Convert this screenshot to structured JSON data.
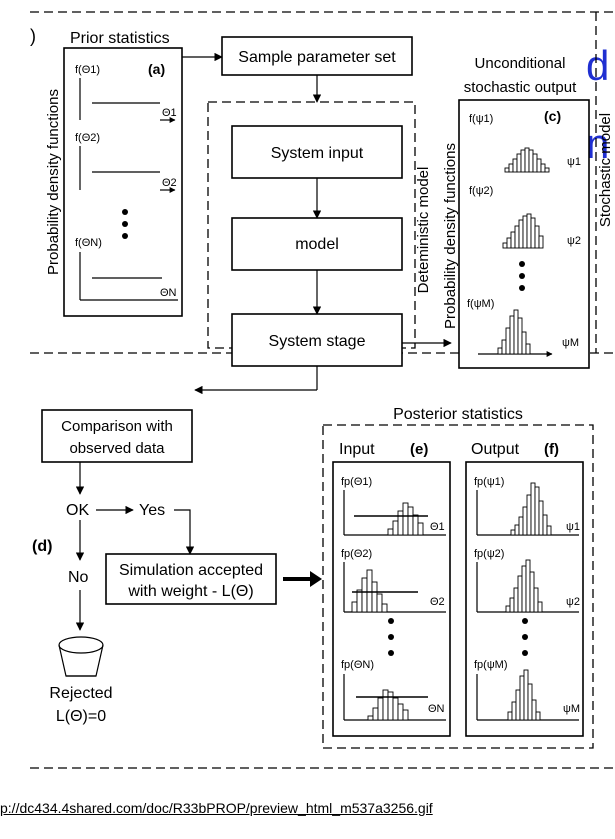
{
  "slide_fragments": [
    "d",
    "n"
  ],
  "left_edge_bracket": ")",
  "prior": {
    "title": "Prior statistics",
    "label": "(a)",
    "axis_title": "Probability density functions",
    "pdfs": [
      {
        "f": "f(Θ1)",
        "var": "Θ1"
      },
      {
        "f": "f(Θ2)",
        "var": "Θ2"
      },
      {
        "f": "f(ΘN)",
        "var": "ΘN"
      }
    ]
  },
  "flow": {
    "sample": "Sample parameter set",
    "system_input": "System input",
    "model": "model",
    "system_stage": "System stage",
    "deterministic_label": "Deteministic model",
    "stochastic_label": "Stochastic model"
  },
  "unconditional": {
    "title_line1": "Unconditional",
    "title_line2": "stochastic output",
    "label": "(c)",
    "axis_title": "Probability density functions",
    "pdfs": [
      {
        "f": "f(ψ1)",
        "var": "ψ1"
      },
      {
        "f": "f(ψ2)",
        "var": "ψ2"
      },
      {
        "f": "f(ψM)",
        "var": "ψM"
      }
    ]
  },
  "comparison": {
    "line1": "Comparison with",
    "line2": "observed data",
    "ok": "OK",
    "yes": "Yes",
    "no": "No",
    "label": "(d)",
    "accepted_line1": "Simulation accepted",
    "accepted_line2": "with weight - L(Θ)",
    "rejected_line1": "Rejected",
    "rejected_line2": "L(Θ)=0"
  },
  "posterior": {
    "title": "Posterior statistics",
    "input_title": "Input",
    "input_label": "(e)",
    "output_title": "Output",
    "output_label": "(f)",
    "input_pdfs": [
      {
        "f": "fp(Θ1)",
        "var": "Θ1"
      },
      {
        "f": "fp(Θ2)",
        "var": "Θ2"
      },
      {
        "f": "fp(ΘN)",
        "var": "ΘN"
      }
    ],
    "output_pdfs": [
      {
        "f": "fp(ψ1)",
        "var": "ψ1"
      },
      {
        "f": "fp(ψ2)",
        "var": "ψ2"
      },
      {
        "f": "fp(ψM)",
        "var": "ψM"
      }
    ]
  },
  "source_url": "p://dc434.4shared.com/doc/R33bPROP/preview_html_m537a3256.gif",
  "colors": {
    "fragment_text": "#1f2fd1"
  }
}
